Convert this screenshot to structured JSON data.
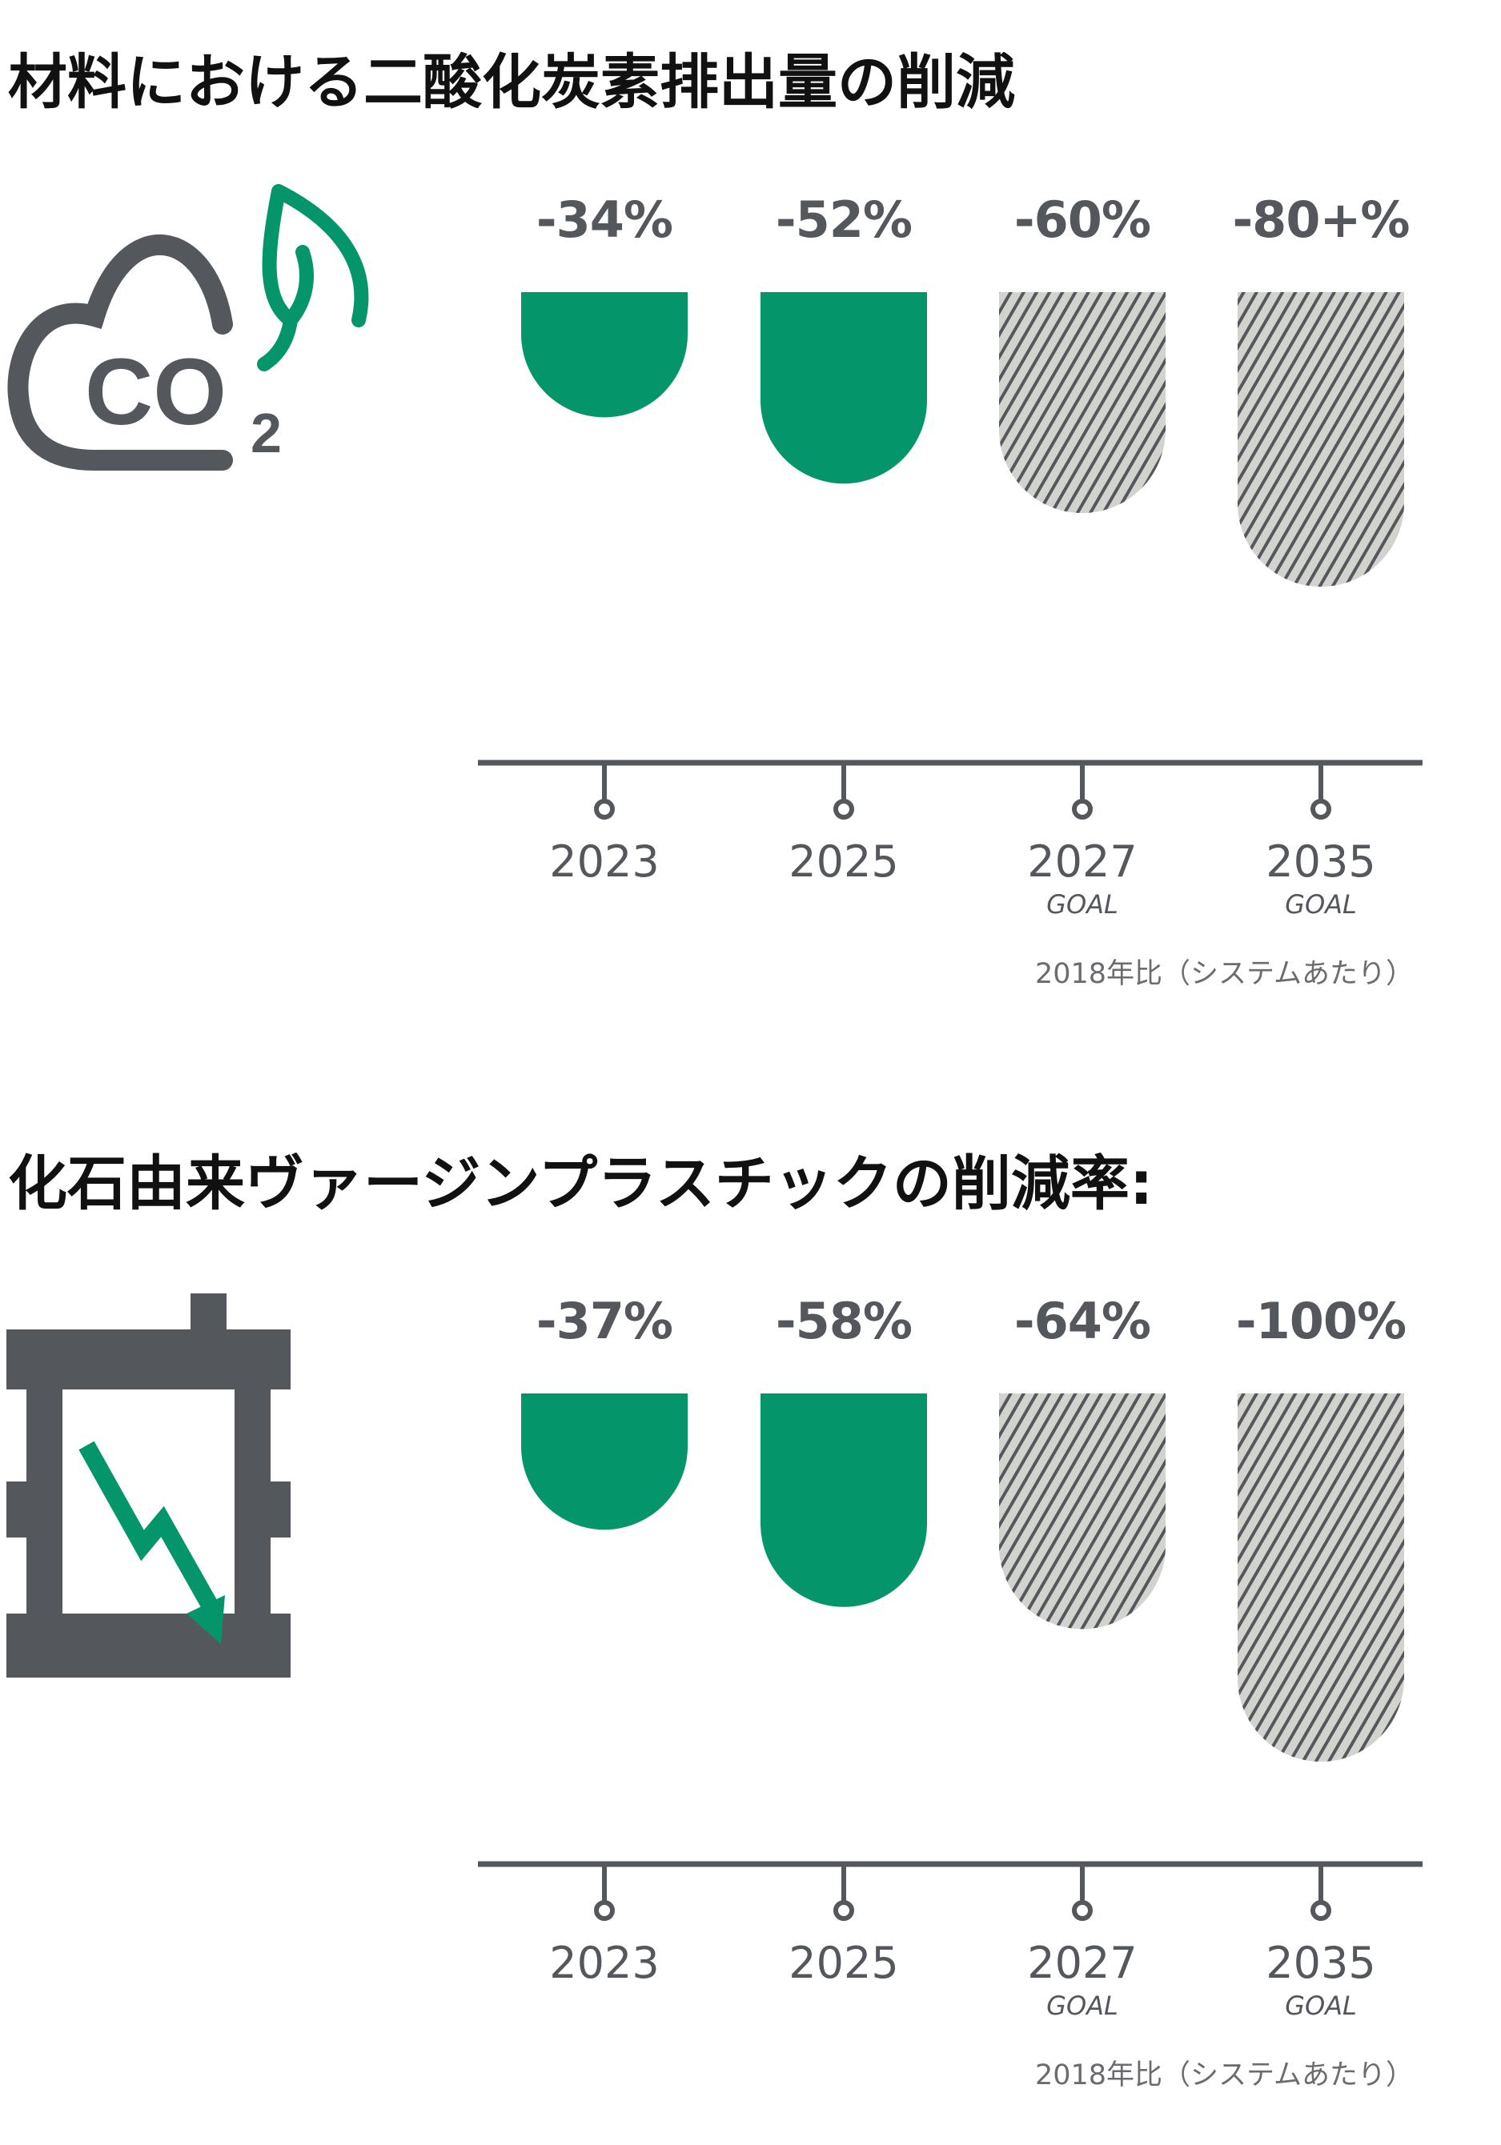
{
  "colors": {
    "achieved": "#05956b",
    "goal_fill": "#d2d2cf",
    "goal_hatch": "#54575b",
    "axis": "#54575b",
    "text": "#54575b"
  },
  "chart_data": [
    {
      "type": "bar",
      "title": "材料における二酸化炭素排出量の削減",
      "icon": "co2-cloud-leaf-icon",
      "categories": [
        "2023",
        "2025",
        "2027",
        "2035"
      ],
      "category_sublabels": [
        "",
        "",
        "GOAL",
        "GOAL"
      ],
      "values": [
        -34,
        -52,
        -60,
        -80
      ],
      "value_labels": [
        "-34%",
        "-52%",
        "-60%",
        "-80+%"
      ],
      "bar_style": [
        "solid",
        "solid",
        "hatched",
        "hatched"
      ],
      "footnote": "2018年比（システムあたり）",
      "ylim": [
        -100,
        0
      ],
      "grid": false
    },
    {
      "type": "bar",
      "title": "化石由来ヴァージンプラスチックの削減率:",
      "icon": "oil-barrel-down-arrow-icon",
      "categories": [
        "2023",
        "2025",
        "2027",
        "2035"
      ],
      "category_sublabels": [
        "",
        "",
        "GOAL",
        "GOAL"
      ],
      "values": [
        -37,
        -58,
        -64,
        -100
      ],
      "value_labels": [
        "-37%",
        "-58%",
        "-64%",
        "-100%"
      ],
      "bar_style": [
        "solid",
        "solid",
        "hatched",
        "hatched"
      ],
      "footnote": "2018年比（システムあたり）",
      "ylim": [
        -100,
        0
      ],
      "grid": false
    }
  ]
}
